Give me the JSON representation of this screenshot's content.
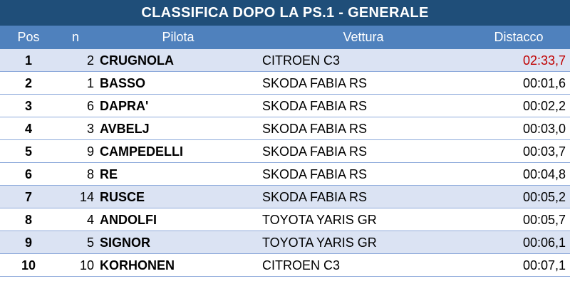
{
  "title": "CLASSIFICA DOPO LA PS.1 - GENERALE",
  "headers": {
    "pos": "Pos",
    "n": "n",
    "pilota": "Pilota",
    "vettura": "Vettura",
    "distacco": "Distacco"
  },
  "colors": {
    "title_bg": "#1f4e79",
    "header_bg": "#4f81bd",
    "alt_row_bg": "#dbe3f3",
    "leader_time": "#c00000"
  },
  "rows": [
    {
      "pos": "1",
      "n": "2",
      "pilota": "CRUGNOLA",
      "vettura": "CITROEN C3",
      "distacco": "02:33,7"
    },
    {
      "pos": "2",
      "n": "1",
      "pilota": "BASSO",
      "vettura": "SKODA FABIA RS",
      "distacco": "00:01,6"
    },
    {
      "pos": "3",
      "n": "6",
      "pilota": "DAPRA'",
      "vettura": "SKODA FABIA RS",
      "distacco": "00:02,2"
    },
    {
      "pos": "4",
      "n": "3",
      "pilota": "AVBELJ",
      "vettura": "SKODA FABIA RS",
      "distacco": "00:03,0"
    },
    {
      "pos": "5",
      "n": "9",
      "pilota": "CAMPEDELLI",
      "vettura": "SKODA FABIA RS",
      "distacco": "00:03,7"
    },
    {
      "pos": "6",
      "n": "8",
      "pilota": "RE",
      "vettura": "SKODA FABIA RS",
      "distacco": "00:04,8"
    },
    {
      "pos": "7",
      "n": "14",
      "pilota": "RUSCE",
      "vettura": "SKODA FABIA RS",
      "distacco": "00:05,2"
    },
    {
      "pos": "8",
      "n": "4",
      "pilota": "ANDOLFI",
      "vettura": "TOYOTA YARIS GR",
      "distacco": "00:05,7"
    },
    {
      "pos": "9",
      "n": "5",
      "pilota": "SIGNOR",
      "vettura": "TOYOTA YARIS GR",
      "distacco": "00:06,1"
    },
    {
      "pos": "10",
      "n": "10",
      "pilota": "KORHONEN",
      "vettura": "CITROEN C3",
      "distacco": "00:07,1"
    }
  ]
}
